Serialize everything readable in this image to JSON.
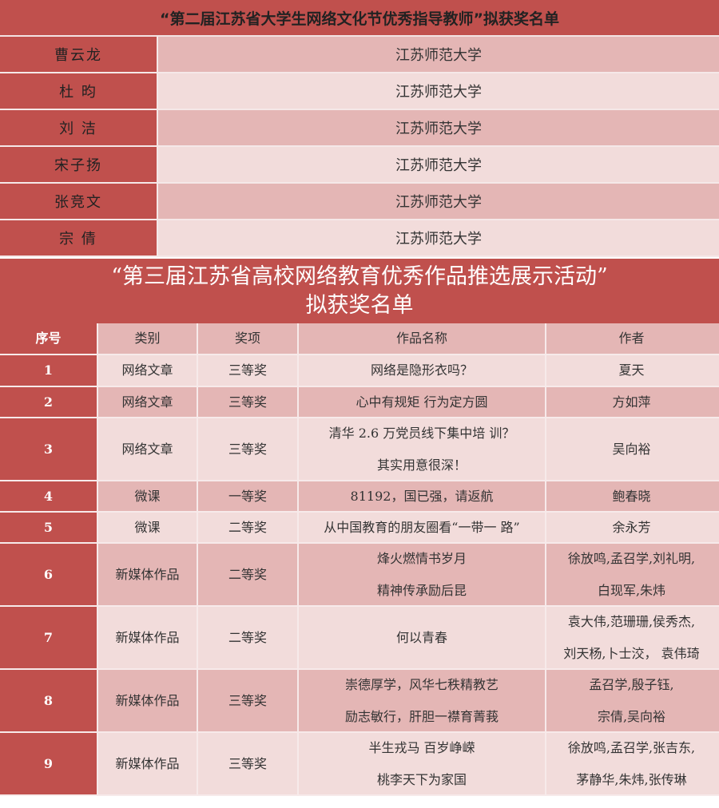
{
  "table1": {
    "title": "“第二届江苏省大学生网络文化节优秀指导教师”拟获奖名单",
    "rows": [
      {
        "name": "曹云龙",
        "school": "江苏师范大学"
      },
      {
        "name": "杜 昀",
        "school": "江苏师范大学"
      },
      {
        "name": "刘 洁",
        "school": "江苏师范大学"
      },
      {
        "name": "宋子扬",
        "school": "江苏师范大学"
      },
      {
        "name": "张竞文",
        "school": "江苏师范大学"
      },
      {
        "name": "宗 倩",
        "school": "江苏师范大学"
      }
    ]
  },
  "table2": {
    "title_line1": "“第三届江苏省高校网络教育优秀作品推选展示活动”",
    "title_line2": "拟获奖名单",
    "headers": [
      "序号",
      "类别",
      "奖项",
      "作品名称",
      "作者"
    ],
    "rows": [
      {
        "no": "1",
        "category": "网络文章",
        "award": "三等奖",
        "work": [
          "网络是隐形衣吗？"
        ],
        "authors": [
          "夏天"
        ]
      },
      {
        "no": "2",
        "category": "网络文章",
        "award": "三等奖",
        "work": [
          "心中有规矩 行为定方圆"
        ],
        "authors": [
          "方如萍"
        ]
      },
      {
        "no": "3",
        "category": "网络文章",
        "award": "三等奖",
        "work": [
          "清华 2.6 万党员线下集中培 训？",
          "其实用意很深！"
        ],
        "authors": [
          "吴向裕"
        ]
      },
      {
        "no": "4",
        "category": "微课",
        "award": "一等奖",
        "work": [
          "81192，国已强，请返航"
        ],
        "authors": [
          "鲍春晓"
        ]
      },
      {
        "no": "5",
        "category": "微课",
        "award": "二等奖",
        "work": [
          "从中国教育的朋友圈看“一带一 路”"
        ],
        "authors": [
          "余永芳"
        ]
      },
      {
        "no": "6",
        "category": "新媒体作品",
        "award": "二等奖",
        "work": [
          "烽火燃情书岁月",
          "精神传承励后昆"
        ],
        "authors": [
          "徐放鸣,孟召学,刘礼明,",
          "白现军,朱炜"
        ]
      },
      {
        "no": "7",
        "category": "新媒体作品",
        "award": "二等奖",
        "work": [
          "何以青春"
        ],
        "authors": [
          "袁大伟,范珊珊,侯秀杰,",
          "刘天杨,卜士洨， 袁伟琦"
        ]
      },
      {
        "no": "8",
        "category": "新媒体作品",
        "award": "三等奖",
        "work": [
          "崇德厚学，风华七秩精教艺",
          "励志敏行，肝胆一襟育菁莪"
        ],
        "authors": [
          "孟召学,殷子钰,",
          "宗倩,吴向裕"
        ]
      },
      {
        "no": "9",
        "category": "新媒体作品",
        "award": "三等奖",
        "work": [
          "半生戎马 百岁峥嵘",
          "桃李天下为家国"
        ],
        "authors": [
          "徐放鸣,孟召学,张吉东,",
          "茅静华,朱炜,张传琳"
        ]
      }
    ]
  },
  "colors": {
    "header_red": "#c0504d",
    "row_dark": "#e4b6b5",
    "row_light": "#f2dcdb"
  }
}
